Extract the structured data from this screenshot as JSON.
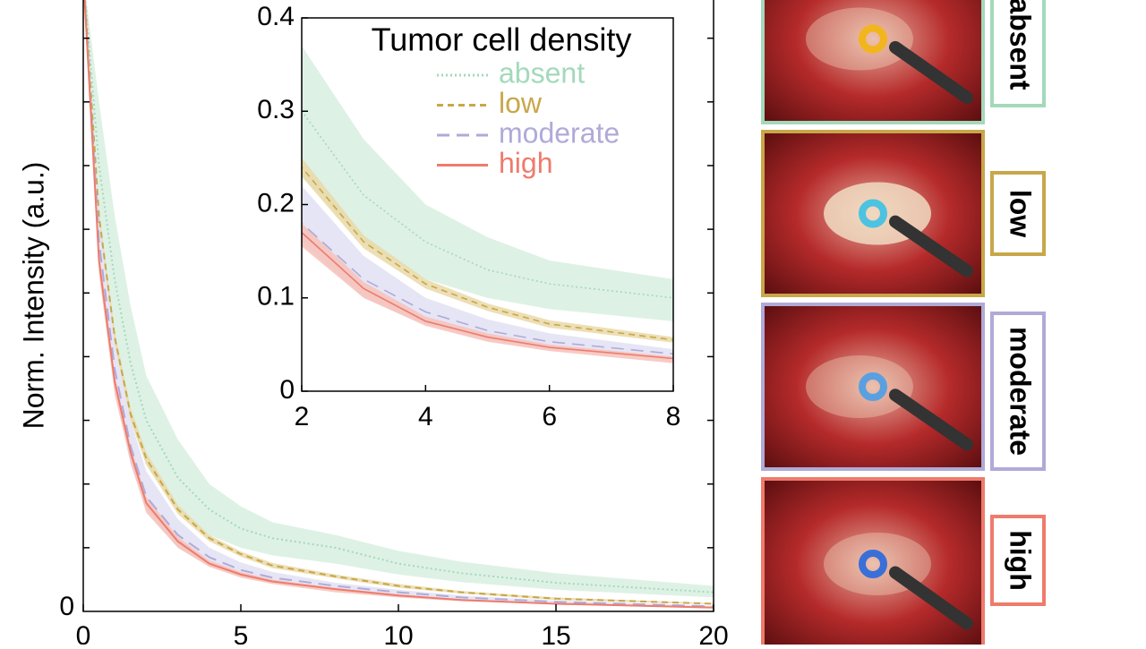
{
  "chart_data": [
    {
      "type": "line",
      "y_label": "Norm. Intensity (a.u.)",
      "x": [
        0,
        0.5,
        1,
        1.5,
        2,
        3,
        4,
        5,
        6,
        8,
        10,
        12,
        15,
        20
      ],
      "xlim": [
        0,
        20
      ],
      "xticks": [
        0,
        5,
        10,
        15,
        20
      ],
      "ylim": [
        0,
        0.96
      ],
      "yticks": [
        0
      ],
      "yminor_ticks": [
        0.1,
        0.2,
        0.3,
        0.4,
        0.5,
        0.6,
        0.7,
        0.8,
        0.9
      ],
      "series": [
        {
          "name": "absent",
          "color": "#a3d9bb",
          "band_color": "#d8efe0",
          "dash": "2 3",
          "values": [
            1,
            0.7,
            0.52,
            0.39,
            0.3,
            0.21,
            0.16,
            0.13,
            0.115,
            0.1,
            0.075,
            0.06,
            0.045,
            0.03
          ],
          "upper": [
            1,
            0.8,
            0.62,
            0.48,
            0.37,
            0.27,
            0.2,
            0.165,
            0.14,
            0.12,
            0.095,
            0.078,
            0.06,
            0.04
          ],
          "lower": [
            1,
            0.6,
            0.42,
            0.3,
            0.23,
            0.16,
            0.12,
            0.1,
            0.088,
            0.075,
            0.058,
            0.046,
            0.034,
            0.022
          ]
        },
        {
          "name": "low",
          "color": "#c8a74a",
          "band_color": "#ead9a8",
          "dash": "7 5",
          "values": [
            1,
            0.62,
            0.43,
            0.31,
            0.24,
            0.16,
            0.115,
            0.09,
            0.072,
            0.055,
            0.04,
            0.03,
            0.02,
            0.012
          ],
          "upper": [
            1,
            0.63,
            0.44,
            0.32,
            0.25,
            0.167,
            0.12,
            0.094,
            0.076,
            0.058,
            0.043,
            0.032,
            0.022,
            0.013
          ],
          "lower": [
            1,
            0.61,
            0.42,
            0.3,
            0.23,
            0.153,
            0.11,
            0.086,
            0.068,
            0.052,
            0.037,
            0.028,
            0.018,
            0.011
          ]
        },
        {
          "name": "moderate",
          "color": "#b0aad8",
          "band_color": "#e2e0f3",
          "dash": "14 8",
          "values": [
            1,
            0.58,
            0.38,
            0.26,
            0.18,
            0.12,
            0.085,
            0.065,
            0.053,
            0.04,
            0.03,
            0.022,
            0.015,
            0.008
          ],
          "upper": [
            1,
            0.62,
            0.42,
            0.3,
            0.22,
            0.145,
            0.1,
            0.077,
            0.062,
            0.045,
            0.034,
            0.025,
            0.017,
            0.009
          ],
          "lower": [
            1,
            0.55,
            0.35,
            0.23,
            0.16,
            0.1,
            0.072,
            0.055,
            0.045,
            0.035,
            0.026,
            0.019,
            0.013,
            0.007
          ]
        },
        {
          "name": "high",
          "color": "#ee7b6c",
          "band_color": "#f6c2ba",
          "dash": "none",
          "values": [
            1,
            0.55,
            0.36,
            0.25,
            0.17,
            0.11,
            0.075,
            0.058,
            0.047,
            0.035,
            0.025,
            0.018,
            0.012,
            0.006
          ],
          "upper": [
            1,
            0.57,
            0.37,
            0.26,
            0.18,
            0.117,
            0.08,
            0.062,
            0.05,
            0.037,
            0.027,
            0.019,
            0.013,
            0.007
          ],
          "lower": [
            1,
            0.53,
            0.34,
            0.235,
            0.155,
            0.1,
            0.07,
            0.053,
            0.043,
            0.03,
            0.022,
            0.016,
            0.011,
            0.005
          ]
        }
      ]
    },
    {
      "type": "inset",
      "legend_title": "Tumor cell density",
      "xlim": [
        2,
        8
      ],
      "xticks": [
        2,
        4,
        6,
        8
      ],
      "ylim": [
        0,
        0.4
      ],
      "yticks": [
        0,
        0.1,
        0.2,
        0.3,
        0.4
      ]
    }
  ]
}
